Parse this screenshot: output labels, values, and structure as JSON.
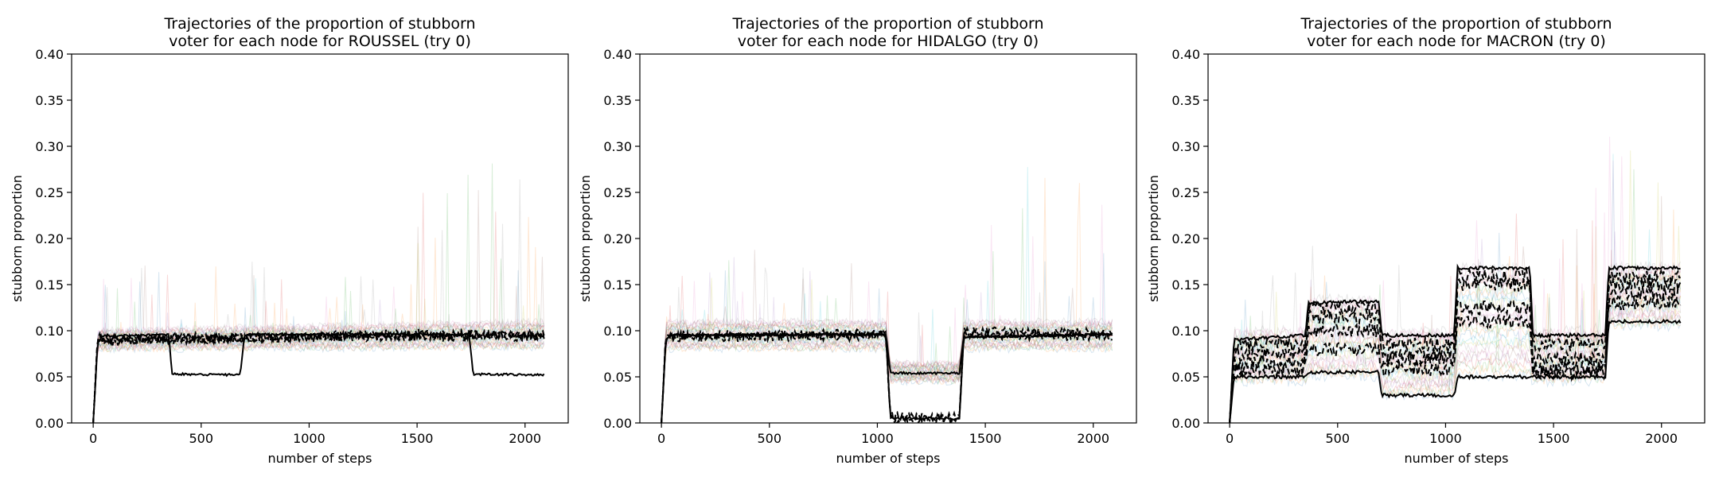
{
  "chart_data": [
    {
      "type": "line",
      "title_line1": "Trajectories of the proportion of stubborn",
      "title_line2": "voter for each node for ROUSSEL (try 0)",
      "xlabel": "number of steps",
      "ylabel": "stubborn proportion",
      "xlim": [
        -100,
        2200
      ],
      "ylim": [
        0,
        0.4
      ],
      "x_ticks": [
        0,
        500,
        1000,
        1500,
        2000
      ],
      "y_ticks": [
        0.0,
        0.05,
        0.1,
        0.15,
        0.2,
        0.25,
        0.3,
        0.35,
        0.4
      ],
      "x_tick_labels": [
        "0",
        "500",
        "1000",
        "1500",
        "2000"
      ],
      "y_tick_labels": [
        "0.00",
        "0.05",
        "0.10",
        "0.15",
        "0.20",
        "0.25",
        "0.30",
        "0.35",
        "0.40"
      ],
      "grid": false,
      "x_end": 2090,
      "series": [
        {
          "style": "solid",
          "points": [
            [
              0,
              0
            ],
            [
              20,
              0.085
            ],
            [
              40,
              0.094
            ],
            [
              350,
              0.096
            ],
            [
              365,
              0.053
            ],
            [
              680,
              0.052
            ],
            [
              700,
              0.093
            ],
            [
              720,
              0.096
            ],
            [
              1740,
              0.096
            ],
            [
              1760,
              0.053
            ],
            [
              2090,
              0.052
            ]
          ]
        },
        {
          "style": "dashed",
          "points": [
            [
              0,
              0
            ],
            [
              20,
              0.09
            ],
            [
              2090,
              0.096
            ]
          ]
        },
        {
          "style": "dashed",
          "points": [
            [
              0,
              0
            ],
            [
              20,
              0.088
            ],
            [
              1500,
              0.097
            ],
            [
              2090,
              0.095
            ]
          ]
        },
        {
          "style": "dashed",
          "points": [
            [
              0,
              0
            ],
            [
              20,
              0.092
            ],
            [
              2090,
              0.094
            ]
          ]
        }
      ],
      "envelopes": [
        {
          "points": [
            [
              0,
              0,
              0
            ],
            [
              20,
              0.08,
              0.1
            ],
            [
              2090,
              0.082,
              0.11
            ]
          ]
        }
      ],
      "noise_scale": 0.004
    },
    {
      "type": "line",
      "title_line1": "Trajectories of the proportion of stubborn",
      "title_line2": "voter for each node for HIDALGO (try 0)",
      "xlabel": "number of steps",
      "ylabel": "stubborn proportion",
      "xlim": [
        -100,
        2200
      ],
      "ylim": [
        0,
        0.4
      ],
      "x_ticks": [
        0,
        500,
        1000,
        1500,
        2000
      ],
      "y_ticks": [
        0.0,
        0.05,
        0.1,
        0.15,
        0.2,
        0.25,
        0.3,
        0.35,
        0.4
      ],
      "x_tick_labels": [
        "0",
        "500",
        "1000",
        "1500",
        "2000"
      ],
      "y_tick_labels": [
        "0.00",
        "0.05",
        "0.10",
        "0.15",
        "0.20",
        "0.25",
        "0.30",
        "0.35",
        "0.40"
      ],
      "grid": false,
      "x_end": 2090,
      "series": [
        {
          "style": "solid",
          "points": [
            [
              0,
              0
            ],
            [
              20,
              0.09
            ],
            [
              40,
              0.095
            ],
            [
              1040,
              0.096
            ],
            [
              1060,
              0.054
            ],
            [
              1380,
              0.054
            ],
            [
              1400,
              0.093
            ],
            [
              2090,
              0.096
            ]
          ]
        },
        {
          "style": "solid",
          "points": [
            [
              0,
              0
            ],
            [
              20,
              0.09
            ],
            [
              40,
              0.095
            ],
            [
              1040,
              0.096
            ],
            [
              1060,
              0.005
            ],
            [
              1380,
              0.005
            ],
            [
              1400,
              0.093
            ],
            [
              2090,
              0.096
            ]
          ]
        },
        {
          "style": "dashed",
          "points": [
            [
              0,
              0
            ],
            [
              20,
              0.092
            ],
            [
              1040,
              0.095
            ],
            [
              1060,
              0.007
            ],
            [
              1380,
              0.006
            ],
            [
              1400,
              0.095
            ],
            [
              2090,
              0.094
            ]
          ]
        },
        {
          "style": "dashed",
          "points": [
            [
              0,
              0
            ],
            [
              20,
              0.095
            ],
            [
              1040,
              0.097
            ],
            [
              1060,
              0.003
            ],
            [
              1380,
              0.004
            ],
            [
              1400,
              0.1
            ],
            [
              2090,
              0.097
            ]
          ]
        }
      ],
      "envelopes": [
        {
          "points": [
            [
              0,
              0,
              0
            ],
            [
              20,
              0.08,
              0.11
            ],
            [
              1040,
              0.08,
              0.11
            ],
            [
              1060,
              0.045,
              0.065
            ],
            [
              1380,
              0.045,
              0.065
            ],
            [
              1400,
              0.08,
              0.11
            ],
            [
              2090,
              0.08,
              0.11
            ]
          ]
        }
      ],
      "noise_scale": 0.004
    },
    {
      "type": "line",
      "title_line1": "Trajectories of the proportion of stubborn",
      "title_line2": "voter for each node for MACRON (try 0)",
      "xlabel": "number of steps",
      "ylabel": "stubborn proportion",
      "xlim": [
        -100,
        2200
      ],
      "ylim": [
        0,
        0.4
      ],
      "x_ticks": [
        0,
        500,
        1000,
        1500,
        2000
      ],
      "y_ticks": [
        0.0,
        0.05,
        0.1,
        0.15,
        0.2,
        0.25,
        0.3,
        0.35,
        0.4
      ],
      "x_tick_labels": [
        "0",
        "500",
        "1000",
        "1500",
        "2000"
      ],
      "y_tick_labels": [
        "0.00",
        "0.05",
        "0.10",
        "0.15",
        "0.20",
        "0.25",
        "0.30",
        "0.35",
        "0.40"
      ],
      "grid": false,
      "x_end": 2090,
      "series": [
        {
          "style": "solid",
          "points": [
            [
              0,
              0
            ],
            [
              20,
              0.09
            ],
            [
              350,
              0.095
            ],
            [
              365,
              0.13
            ],
            [
              690,
              0.132
            ],
            [
              705,
              0.095
            ],
            [
              1040,
              0.095
            ],
            [
              1055,
              0.168
            ],
            [
              1390,
              0.168
            ],
            [
              1405,
              0.095
            ],
            [
              1740,
              0.095
            ],
            [
              1755,
              0.168
            ],
            [
              2090,
              0.168
            ]
          ]
        },
        {
          "style": "solid",
          "points": [
            [
              0,
              0
            ],
            [
              20,
              0.05
            ],
            [
              350,
              0.05
            ],
            [
              365,
              0.055
            ],
            [
              690,
              0.055
            ],
            [
              705,
              0.03
            ],
            [
              1040,
              0.03
            ],
            [
              1055,
              0.05
            ],
            [
              1390,
              0.05
            ],
            [
              1405,
              0.05
            ],
            [
              1740,
              0.05
            ],
            [
              1755,
              0.11
            ],
            [
              2090,
              0.11
            ]
          ]
        },
        {
          "style": "dashed",
          "points": [
            [
              0,
              0
            ],
            [
              20,
              0.065
            ],
            [
              350,
              0.067
            ],
            [
              365,
              0.1
            ],
            [
              690,
              0.1
            ],
            [
              705,
              0.07
            ],
            [
              1040,
              0.07
            ],
            [
              1055,
              0.15
            ],
            [
              1390,
              0.15
            ],
            [
              1405,
              0.06
            ],
            [
              1740,
              0.06
            ],
            [
              1755,
              0.15
            ],
            [
              2090,
              0.15
            ]
          ]
        },
        {
          "style": "dashed",
          "points": [
            [
              0,
              0
            ],
            [
              20,
              0.075
            ],
            [
              350,
              0.075
            ],
            [
              365,
              0.115
            ],
            [
              690,
              0.115
            ],
            [
              705,
              0.075
            ],
            [
              1040,
              0.075
            ],
            [
              1055,
              0.125
            ],
            [
              1390,
              0.125
            ],
            [
              1405,
              0.07
            ],
            [
              1740,
              0.07
            ],
            [
              1755,
              0.14
            ],
            [
              2090,
              0.14
            ]
          ]
        },
        {
          "style": "dashed",
          "points": [
            [
              0,
              0
            ],
            [
              20,
              0.058
            ],
            [
              350,
              0.058
            ],
            [
              365,
              0.08
            ],
            [
              690,
              0.08
            ],
            [
              705,
              0.058
            ],
            [
              1040,
              0.058
            ],
            [
              1055,
              0.11
            ],
            [
              1390,
              0.11
            ],
            [
              1405,
              0.055
            ],
            [
              1740,
              0.055
            ],
            [
              1755,
              0.13
            ],
            [
              2090,
              0.13
            ]
          ]
        },
        {
          "style": "dashed",
          "points": [
            [
              0,
              0
            ],
            [
              20,
              0.085
            ],
            [
              350,
              0.085
            ],
            [
              365,
              0.125
            ],
            [
              690,
              0.125
            ],
            [
              705,
              0.085
            ],
            [
              1040,
              0.085
            ],
            [
              1055,
              0.16
            ],
            [
              1390,
              0.16
            ],
            [
              1405,
              0.085
            ],
            [
              1740,
              0.085
            ],
            [
              1755,
              0.158
            ],
            [
              2090,
              0.158
            ]
          ]
        }
      ],
      "envelopes": [
        {
          "points": [
            [
              0,
              0,
              0
            ],
            [
              20,
              0.045,
              0.1
            ],
            [
              350,
              0.045,
              0.1
            ],
            [
              365,
              0.05,
              0.135
            ],
            [
              690,
              0.05,
              0.135
            ],
            [
              705,
              0.03,
              0.1
            ],
            [
              1040,
              0.03,
              0.1
            ],
            [
              1055,
              0.05,
              0.17
            ],
            [
              1390,
              0.05,
              0.17
            ],
            [
              1405,
              0.045,
              0.1
            ],
            [
              1740,
              0.045,
              0.1
            ],
            [
              1755,
              0.105,
              0.17
            ],
            [
              2090,
              0.105,
              0.17
            ]
          ]
        }
      ],
      "noise_scale": 0.006
    }
  ]
}
